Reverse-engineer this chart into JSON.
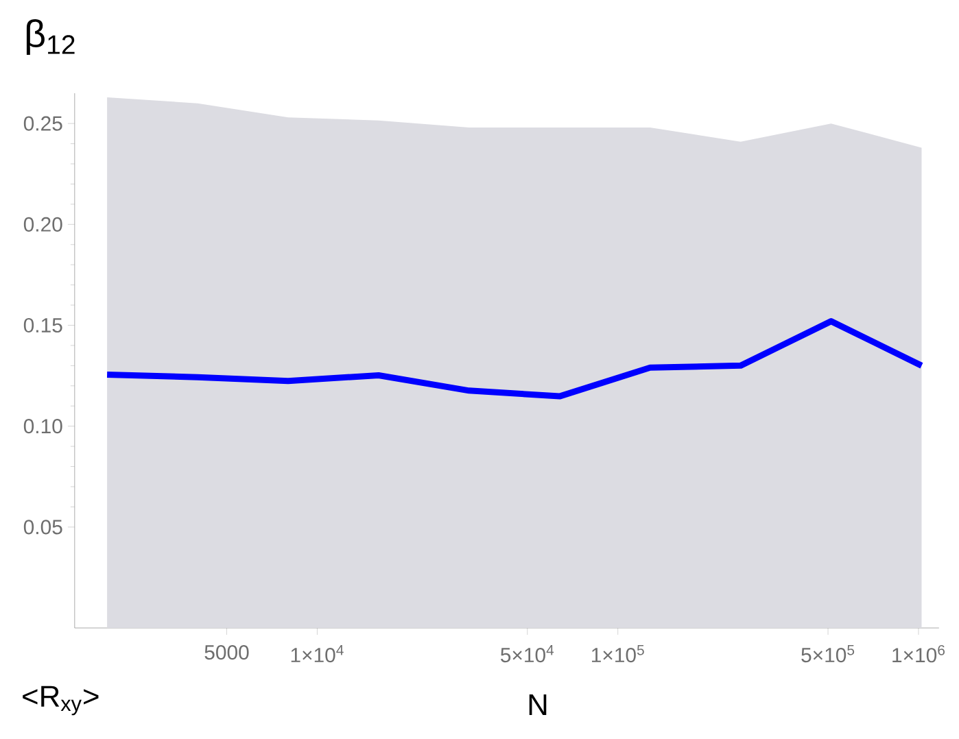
{
  "chart_data": {
    "type": "line",
    "ylabel": "β$_{12}$",
    "xlabel": "N",
    "annotations": [
      "<R$_{xy}$>"
    ],
    "log": "x",
    "grid": false,
    "marker": "none",
    "line_style": "solid",
    "xlim": [
      1560,
      1170000
    ],
    "ylim": [
      0,
      0.265
    ],
    "xticks": [
      5000,
      {
        "value": 10000,
        "label": "1×10$^{4}$"
      },
      {
        "value": 50000,
        "label": "5×10$^{4}$"
      },
      {
        "value": 100000,
        "label": "1×10$^{5}$"
      },
      {
        "value": 500000,
        "label": "5×10$^{5}$"
      },
      {
        "value": 1000000,
        "label": "1×10$^{6}$"
      }
    ],
    "yticks": [
      0.05,
      {
        "value": 0.1,
        "label": "0.10"
      },
      0.15,
      {
        "value": 0.2,
        "label": "0.20"
      },
      0.25
    ],
    "x": [
      2000,
      4000,
      8000,
      16000,
      32000,
      64000,
      128000,
      256000,
      512000,
      1024000
    ],
    "series": [
      {
        "color": "#0000ff",
        "values": [
          0.1255,
          0.1243,
          0.1224,
          0.1252,
          0.1176,
          0.1148,
          0.129,
          0.13,
          0.152,
          0.13
        ],
        "lower": [
          0,
          0,
          0,
          0,
          0,
          0,
          0,
          0,
          0,
          0
        ],
        "upper": [
          0.263,
          0.26,
          0.253,
          0.2515,
          0.248,
          0.248,
          0.248,
          0.241,
          0.25,
          0.238
        ]
      }
    ]
  }
}
